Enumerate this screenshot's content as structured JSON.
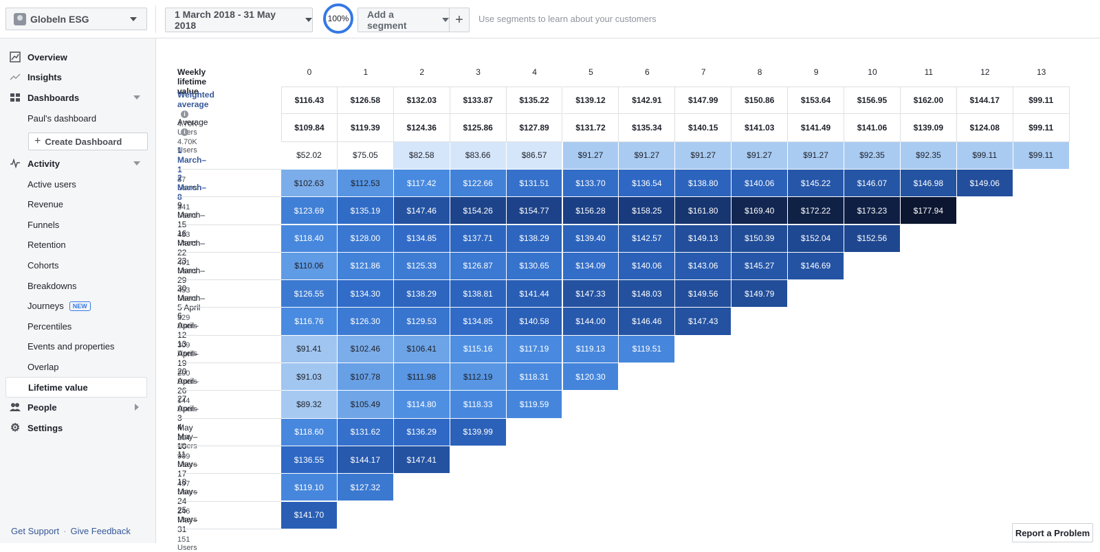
{
  "topbar": {
    "app_name": "Globeln ESG",
    "date_range": "1 March 2018 - 31 May 2018",
    "sample_pct": "100%",
    "segment_label": "Add a segment",
    "plus_label": "+",
    "segment_hint": "Use segments to learn about your customers"
  },
  "sidebar": {
    "overview": "Overview",
    "insights": "Insights",
    "dashboards": "Dashboards",
    "pauls_dashboard": "Paul's dashboard",
    "create_dashboard": "Create Dashboard",
    "activity": "Activity",
    "activity_items": [
      "Active users",
      "Revenue",
      "Funnels",
      "Retention",
      "Cohorts",
      "Breakdowns",
      "Journeys",
      "Percentiles",
      "Events and properties",
      "Overlap",
      "Lifetime value"
    ],
    "new_badge": "NEW",
    "people": "People",
    "settings": "Settings",
    "get_support": "Get Support",
    "give_feedback": "Give Feedback",
    "footer_dot": "·"
  },
  "table": {
    "header_label": "Weekly lifetime value",
    "columns": [
      "0",
      "1",
      "2",
      "3",
      "4",
      "5",
      "6",
      "7",
      "8",
      "9",
      "10",
      "11",
      "12",
      "13"
    ],
    "summary_rows": [
      {
        "name": "Weighted average",
        "users": "4.70K Users",
        "values": [
          "$116.43",
          "$126.58",
          "$132.03",
          "$133.87",
          "$135.22",
          "$139.12",
          "$142.91",
          "$147.99",
          "$150.86",
          "$153.64",
          "$156.95",
          "$162.00",
          "$144.17",
          "$99.11"
        ]
      },
      {
        "name": "Average",
        "users": "4.70K Users",
        "values": [
          "$109.84",
          "$119.39",
          "$124.36",
          "$125.86",
          "$127.89",
          "$131.72",
          "$135.34",
          "$140.15",
          "$141.03",
          "$141.49",
          "$141.06",
          "$139.09",
          "$124.08",
          "$99.11"
        ]
      }
    ],
    "cohort_rows": [
      {
        "name": "1 March–1",
        "users": "37 Users",
        "values": [
          "$52.02",
          "$75.05",
          "$82.58",
          "$83.66",
          "$86.57",
          "$91.27",
          "$91.27",
          "$91.27",
          "$91.27",
          "$91.27",
          "$92.35",
          "$92.35",
          "$99.11",
          "$99.11"
        ]
      },
      {
        "name": "2 March–8",
        "users": "341 Users",
        "values": [
          "$102.63",
          "$112.53",
          "$117.42",
          "$122.66",
          "$131.51",
          "$133.70",
          "$136.54",
          "$138.80",
          "$140.06",
          "$145.22",
          "$146.07",
          "$146.98",
          "$149.06"
        ]
      },
      {
        "name": "9 March–15",
        "users": "483 Users",
        "values": [
          "$123.69",
          "$135.19",
          "$147.46",
          "$154.26",
          "$154.77",
          "$156.28",
          "$158.25",
          "$161.80",
          "$169.40",
          "$172.22",
          "$173.23",
          "$177.94"
        ]
      },
      {
        "name": "16 March–22",
        "users": "401 Users",
        "values": [
          "$118.40",
          "$128.00",
          "$134.85",
          "$137.71",
          "$138.29",
          "$139.40",
          "$142.57",
          "$149.13",
          "$150.39",
          "$152.04",
          "$152.56"
        ]
      },
      {
        "name": "23 March–29",
        "users": "453 Users",
        "values": [
          "$110.06",
          "$121.86",
          "$125.33",
          "$126.87",
          "$130.65",
          "$134.09",
          "$140.06",
          "$143.06",
          "$145.27",
          "$146.69"
        ]
      },
      {
        "name": "30 March–5 April",
        "users": "329 Users",
        "values": [
          "$126.55",
          "$134.30",
          "$138.29",
          "$138.81",
          "$141.44",
          "$147.33",
          "$148.03",
          "$149.56",
          "$149.79"
        ]
      },
      {
        "name": "6 April–12",
        "users": "309 Users",
        "values": [
          "$116.76",
          "$126.30",
          "$129.53",
          "$134.85",
          "$140.58",
          "$144.00",
          "$146.46",
          "$147.43"
        ]
      },
      {
        "name": "13 April–19",
        "users": "200 Users",
        "values": [
          "$91.41",
          "$102.46",
          "$106.41",
          "$115.16",
          "$117.19",
          "$119.13",
          "$119.51"
        ]
      },
      {
        "name": "20 April–26",
        "users": "144 Users",
        "values": [
          "$91.03",
          "$107.78",
          "$111.98",
          "$112.19",
          "$118.31",
          "$120.30"
        ]
      },
      {
        "name": "27 April–3 May",
        "users": "204 Users",
        "values": [
          "$89.32",
          "$105.49",
          "$114.80",
          "$118.33",
          "$119.59"
        ]
      },
      {
        "name": "4 May–10",
        "users": "909 Users",
        "values": [
          "$118.60",
          "$131.62",
          "$136.29",
          "$139.99"
        ]
      },
      {
        "name": "11 May–17",
        "users": "497 Users",
        "values": [
          "$136.55",
          "$144.17",
          "$147.41"
        ]
      },
      {
        "name": "18 May–24",
        "users": "246 Users",
        "values": [
          "$119.10",
          "$127.32"
        ]
      },
      {
        "name": "25 May–31",
        "users": "151 Users",
        "values": [
          "$141.70"
        ]
      }
    ],
    "linked_rows": [
      "1 March–1",
      "2 March–8"
    ],
    "info_icon": "i"
  },
  "report_problem": "Report a Problem",
  "colors": {
    "accent": "#3578e5",
    "link": "#365899"
  }
}
